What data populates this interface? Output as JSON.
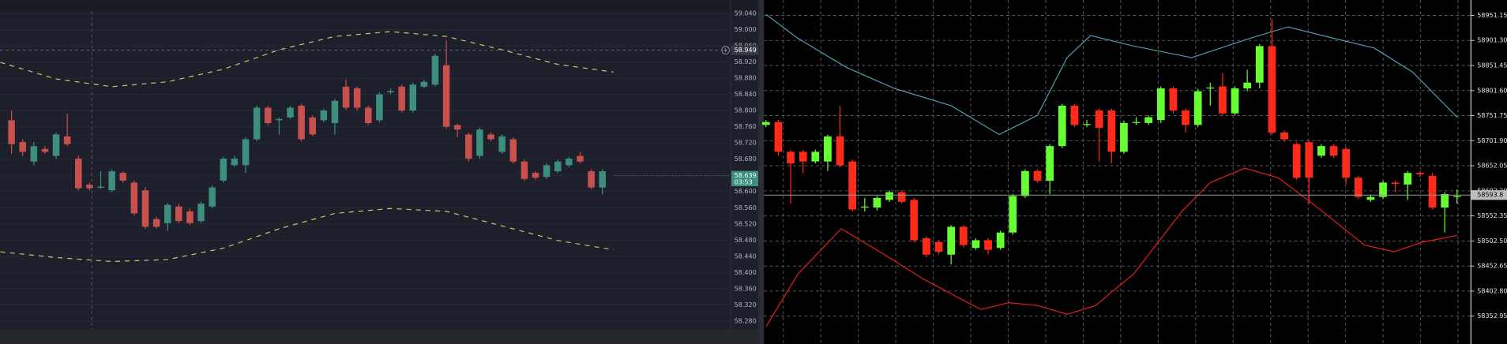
{
  "chart_data": [
    {
      "type": "candlestick",
      "open": [
        58.776,
        58.722,
        58.674,
        58.705,
        58.688,
        58.736,
        58.681,
        58.617,
        58.61,
        58.603,
        58.646,
        58.622,
        58.603,
        58.532,
        58.522,
        58.563,
        58.551,
        58.527,
        58.563,
        58.627,
        58.665,
        58.665,
        58.729,
        58.807,
        58.776,
        58.783,
        58.812,
        58.783,
        58.776,
        58.769,
        58.859,
        58.855,
        58.807,
        58.776,
        58.845,
        58.859,
        58.8,
        58.859,
        58.864,
        58.912,
        58.764,
        58.741,
        58.688,
        58.741,
        58.698,
        58.729,
        58.674,
        58.646,
        58.636,
        58.65,
        58.665,
        58.688,
        58.65,
        58.61
      ],
      "high": [
        58.8,
        58.729,
        58.722,
        58.712,
        58.746,
        58.793,
        58.688,
        58.622,
        58.65,
        58.655,
        58.65,
        58.627,
        58.61,
        58.537,
        58.572,
        58.57,
        58.558,
        58.575,
        58.615,
        58.686,
        58.688,
        58.734,
        58.812,
        58.812,
        58.783,
        58.812,
        58.817,
        58.788,
        58.805,
        58.829,
        58.876,
        58.859,
        58.812,
        58.845,
        58.855,
        58.864,
        58.869,
        58.876,
        58.94,
        58.973,
        58.767,
        58.746,
        58.758,
        58.746,
        58.741,
        58.734,
        58.679,
        58.65,
        58.67,
        58.679,
        58.686,
        58.698,
        58.655,
        58.655
      ],
      "low": [
        58.693,
        58.688,
        58.665,
        58.693,
        58.681,
        58.712,
        58.603,
        58.603,
        58.606,
        58.598,
        58.622,
        58.541,
        58.508,
        58.508,
        58.503,
        58.522,
        58.517,
        58.522,
        58.558,
        58.622,
        58.66,
        58.646,
        58.724,
        58.764,
        58.741,
        58.779,
        58.724,
        58.736,
        58.771,
        58.741,
        58.802,
        58.8,
        58.764,
        58.771,
        58.84,
        58.795,
        58.795,
        58.855,
        58.859,
        58.755,
        58.734,
        58.674,
        58.681,
        58.724,
        58.693,
        58.669,
        58.626,
        58.629,
        58.631,
        58.645,
        58.66,
        58.669,
        58.605,
        58.593
      ],
      "close": [
        58.717,
        58.698,
        58.712,
        58.698,
        58.741,
        58.717,
        58.608,
        58.608,
        58.612,
        58.65,
        58.627,
        58.546,
        58.513,
        58.513,
        58.567,
        58.527,
        58.522,
        58.57,
        58.61,
        58.681,
        58.681,
        58.729,
        58.807,
        58.769,
        58.779,
        58.807,
        58.729,
        58.741,
        58.8,
        58.824,
        58.807,
        58.807,
        58.769,
        58.84,
        58.848,
        58.8,
        58.864,
        58.871,
        58.935,
        58.76,
        58.753,
        58.681,
        58.753,
        58.729,
        58.736,
        58.674,
        58.631,
        58.634,
        58.665,
        58.674,
        58.681,
        58.674,
        58.61,
        58.65
      ],
      "up_color": "#3d8f7d",
      "down_color": "#c8504f",
      "lines": [
        {
          "color": "#c9c46a",
          "dashed": true,
          "x": [
            -1,
            4,
            9,
            14,
            19,
            24,
            29,
            34,
            39,
            44,
            49,
            54
          ],
          "values": [
            58.919,
            58.878,
            58.859,
            58.871,
            58.902,
            58.95,
            58.983,
            58.995,
            58.983,
            58.95,
            58.914,
            58.895
          ]
        },
        {
          "color": "#c9c46a",
          "dashed": true,
          "x": [
            -1,
            4,
            9,
            14,
            19,
            24,
            29,
            34,
            39,
            44,
            49,
            54
          ],
          "values": [
            58.451,
            58.437,
            58.427,
            58.432,
            58.46,
            58.508,
            58.546,
            58.558,
            58.551,
            58.515,
            58.479,
            58.456
          ]
        }
      ],
      "ylim": [
        58.259,
        59.073
      ],
      "yticks": [
        {
          "value": 59.04,
          "label": "59.040"
        },
        {
          "value": 59.0,
          "label": "59.000"
        },
        {
          "value": 58.96,
          "label": "58.960"
        },
        {
          "value": 58.92,
          "label": "58.920"
        },
        {
          "value": 58.88,
          "label": "58.880"
        },
        {
          "value": 58.84,
          "label": "58.840"
        },
        {
          "value": 58.8,
          "label": "58.800"
        },
        {
          "value": 58.76,
          "label": "58.760"
        },
        {
          "value": 58.72,
          "label": "58.720"
        },
        {
          "value": 58.68,
          "label": "58.680"
        },
        {
          "value": 58.64,
          "label": "58.640"
        },
        {
          "value": 58.6,
          "label": "58.600"
        },
        {
          "value": 58.56,
          "label": "58.560"
        },
        {
          "value": 58.52,
          "label": "58.520"
        },
        {
          "value": 58.48,
          "label": "58.480"
        },
        {
          "value": 58.44,
          "label": "58.440"
        },
        {
          "value": 58.4,
          "label": "58.400"
        },
        {
          "value": 58.36,
          "label": "58.360"
        },
        {
          "value": 58.32,
          "label": "58.320"
        },
        {
          "value": 58.28,
          "label": "58.280"
        }
      ],
      "grid": true,
      "crosshair": {
        "x": 7.2,
        "y": 58.949
      },
      "last_price": 58.639,
      "countdown": "03:53"
    },
    {
      "type": "candlestick",
      "open": [
        58733.3,
        58739.0,
        58679.8,
        58679.8,
        58660.6,
        58660.6,
        58710.4,
        58660.6,
        58569.0,
        58569.0,
        58584.2,
        58599.5,
        58584.2,
        58507.8,
        58500.2,
        58475.3,
        58530.7,
        58488.7,
        58504.0,
        58488.7,
        58519.3,
        58591.9,
        58641.6,
        58622.4,
        58691.2,
        58771.5,
        58733.3,
        58762.0,
        58762.0,
        58679.8,
        58737.1,
        58737.1,
        58742.9,
        58805.9,
        58762.0,
        58733.3,
        58805.9,
        58809.7,
        58756.2,
        58805.9,
        58817.4,
        58890.0,
        58718.0,
        58695.0,
        58698.9,
        58672.1,
        58691.2,
        58685.5,
        58628.2,
        58584.2,
        58590.0,
        58618.6,
        58614.8,
        58637.7,
        58632.0,
        58569.0,
        58590.0
      ],
      "high": [
        58743.0,
        58742.9,
        58684.0,
        58684.0,
        58684.0,
        58714.0,
        58771.5,
        58664.0,
        58588.1,
        58592.0,
        58603.0,
        58603.0,
        58588.1,
        58512.0,
        58504.0,
        58534.0,
        58534.0,
        58508.0,
        58508.0,
        58523.0,
        58596.0,
        58645.0,
        58645.0,
        58695.0,
        58775.0,
        58775.0,
        58742.9,
        58766.0,
        58766.0,
        58742.0,
        58748.6,
        58752.0,
        58810.0,
        58810.0,
        58766.0,
        58805.0,
        58817.4,
        58836.0,
        58810.0,
        58843.0,
        58894.0,
        58943.5,
        58722.0,
        58699.0,
        58702.0,
        58695.0,
        58695.0,
        58689.0,
        58632.0,
        58595.0,
        58622.4,
        58622.4,
        58641.6,
        58641.6,
        58637.7,
        58599.5,
        58605.0
      ],
      "low": [
        58729.0,
        58672.1,
        58576.6,
        58637.7,
        58656.8,
        58641.6,
        58649.0,
        58561.0,
        58561.0,
        58563.0,
        58580.4,
        58576.6,
        58500.2,
        58470.0,
        58476.0,
        58456.2,
        58490.0,
        58484.9,
        58476.0,
        58484.9,
        58515.0,
        58588.1,
        58618.6,
        58595.7,
        58687.0,
        58729.0,
        58729.0,
        58660.6,
        58656.8,
        58676.0,
        58733.3,
        58733.3,
        58737.1,
        58756.2,
        58718.0,
        58729.0,
        58771.5,
        58752.0,
        58752.0,
        58800.2,
        58805.9,
        58714.0,
        58700.0,
        58624.0,
        58576.6,
        58668.0,
        58668.0,
        58614.8,
        58586.0,
        58580.4,
        58586.0,
        58599.5,
        58584.2,
        58630.0,
        58565.1,
        58519.3,
        58576.6
      ],
      "close": [
        58739.0,
        58679.8,
        58656.8,
        58660.6,
        58679.8,
        58710.4,
        58653.0,
        58565.1,
        58571.0,
        58588.1,
        58599.5,
        58580.4,
        58504.0,
        58475.3,
        58481.0,
        58530.7,
        58494.4,
        58504.0,
        58484.9,
        58519.3,
        58591.9,
        58641.6,
        58622.4,
        58691.2,
        58771.5,
        58733.3,
        58735.0,
        58727.6,
        58679.8,
        58737.1,
        58739.0,
        58748.6,
        58805.9,
        58762.0,
        58733.3,
        58800.2,
        58807.5,
        58756.2,
        58805.9,
        58817.4,
        58890.0,
        58718.0,
        58704.6,
        58628.2,
        58628.2,
        58691.2,
        58672.1,
        58628.2,
        58590.0,
        58590.0,
        58618.6,
        58616.0,
        58637.7,
        58635.0,
        58569.0,
        58595.7,
        58591.9
      ],
      "up_color": "#66ff33",
      "down_color": "#ff2a1a",
      "lines": [
        {
          "color": "#4f9bab",
          "dashed": false,
          "x": [
            0,
            2.6,
            6.5,
            10.4,
            15.0,
            18.9,
            22.0,
            24.4,
            26.3,
            29.8,
            34.5,
            39.2,
            42.3,
            45.4,
            49.3,
            52.4,
            56.0
          ],
          "values": [
            58953.1,
            58905.3,
            58847.9,
            58805.9,
            58771.5,
            58714.2,
            58752.4,
            58867.1,
            58911.0,
            58890.0,
            58867.1,
            58905.3,
            58928.2,
            58909.1,
            58886.1,
            58838.4,
            58748.6
          ]
        },
        {
          "color": "#e01e1e",
          "dashed": false,
          "x": [
            0,
            2.6,
            6.1,
            9.6,
            12.7,
            17.4,
            19.7,
            22.0,
            24.4,
            26.7,
            29.8,
            33.7,
            36.0,
            38.8,
            41.5,
            44.6,
            48.5,
            50.9,
            53.2,
            56.0
          ],
          "values": [
            58332.0,
            58437.1,
            58526.9,
            58475.3,
            58427.5,
            58366.4,
            58379.8,
            58374.0,
            58356.8,
            58374.0,
            58437.1,
            58561.3,
            58618.6,
            58647.3,
            58628.2,
            58570.9,
            58494.4,
            58481.0,
            58500.2,
            58513.5
          ]
        }
      ],
      "ylim": [
        58297.6,
        58981.7
      ],
      "yticks": [
        58951.15,
        {
          "value": 58901.3,
          "label": "58901.30"
        },
        58851.45,
        {
          "value": 58801.6,
          "label": "58801.60"
        },
        58751.75,
        {
          "value": 58701.9,
          "label": "58701.90"
        },
        58652.05,
        {
          "value": 58602.2,
          "label": "58602.20"
        },
        58552.35,
        {
          "value": 58502.5,
          "label": "58502.50"
        },
        58452.65,
        {
          "value": 58402.8,
          "label": "58402.80"
        },
        58352.95
      ],
      "grid": true,
      "last_price": 58593.8
    }
  ]
}
